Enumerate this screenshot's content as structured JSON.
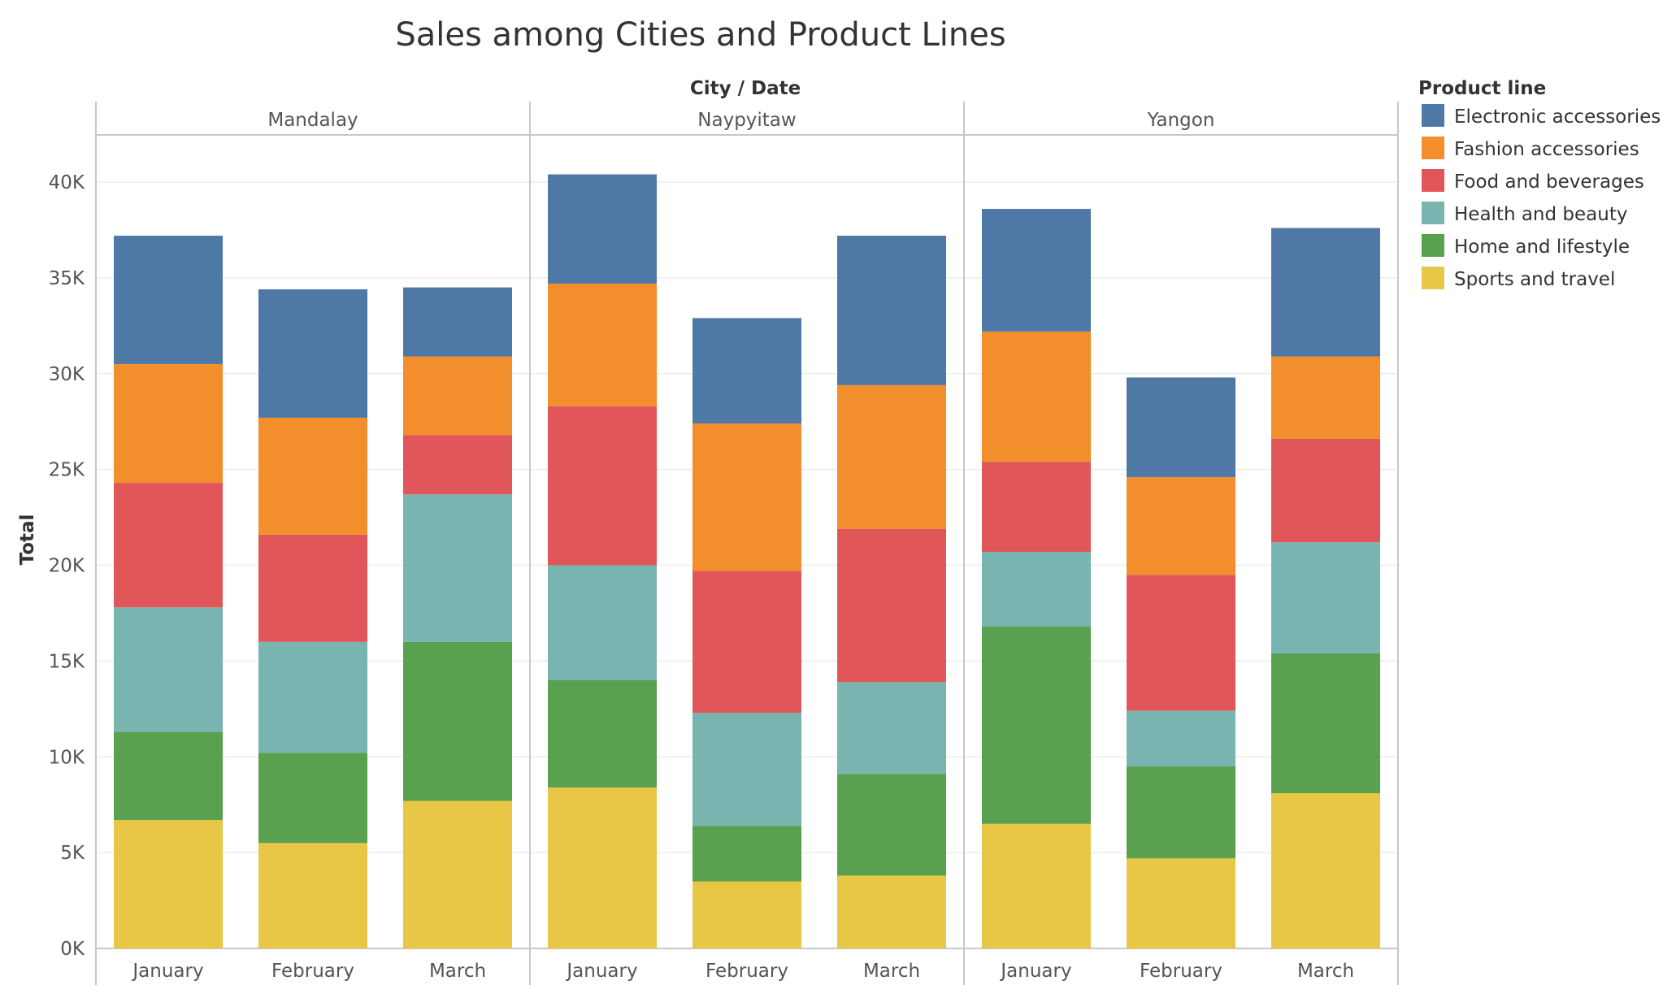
{
  "chart_data": {
    "type": "bar",
    "stacked": true,
    "title": "Sales among Cities and Product Lines",
    "column_header_title": "City / Date",
    "ylabel": "Total",
    "ylim": [
      0,
      42500
    ],
    "yticks": [
      0,
      5000,
      10000,
      15000,
      20000,
      25000,
      30000,
      35000,
      40000
    ],
    "ytick_labels": [
      "0K",
      "5K",
      "10K",
      "15K",
      "20K",
      "25K",
      "30K",
      "35K",
      "40K"
    ],
    "legend_title": "Product line",
    "legend_position": "right",
    "grid": "horizontal",
    "groups": [
      {
        "name": "Mandalay",
        "categories": [
          "January",
          "February",
          "March"
        ]
      },
      {
        "name": "Naypyitaw",
        "categories": [
          "January",
          "February",
          "March"
        ]
      },
      {
        "name": "Yangon",
        "categories": [
          "January",
          "February",
          "March"
        ]
      }
    ],
    "series": [
      {
        "name": "Sports and travel",
        "color": "#E8C646",
        "values": [
          6700,
          5500,
          7700,
          8400,
          3500,
          3800,
          6500,
          4700,
          8100
        ]
      },
      {
        "name": "Home and lifestyle",
        "color": "#59A14F",
        "values": [
          4600,
          4700,
          8300,
          5600,
          2900,
          5300,
          10300,
          4800,
          7300
        ]
      },
      {
        "name": "Health and beauty",
        "color": "#79B5B0",
        "values": [
          6500,
          5800,
          7700,
          6000,
          5900,
          4800,
          3900,
          2900,
          5800
        ]
      },
      {
        "name": "Food and beverages",
        "color": "#E15759",
        "values": [
          6500,
          5600,
          3100,
          8300,
          7400,
          8000,
          4700,
          7100,
          5400
        ]
      },
      {
        "name": "Fashion accessories",
        "color": "#F28E2B",
        "values": [
          6200,
          6100,
          4100,
          6400,
          7700,
          7500,
          6800,
          5100,
          4300
        ]
      },
      {
        "name": "Electronic accessories",
        "color": "#4E79A7",
        "values": [
          6700,
          6700,
          3600,
          5700,
          5500,
          7800,
          6400,
          5200,
          6700
        ]
      }
    ],
    "legend_order": [
      "Electronic accessories",
      "Fashion accessories",
      "Food and beverages",
      "Health and beauty",
      "Home and lifestyle",
      "Sports and travel"
    ]
  }
}
